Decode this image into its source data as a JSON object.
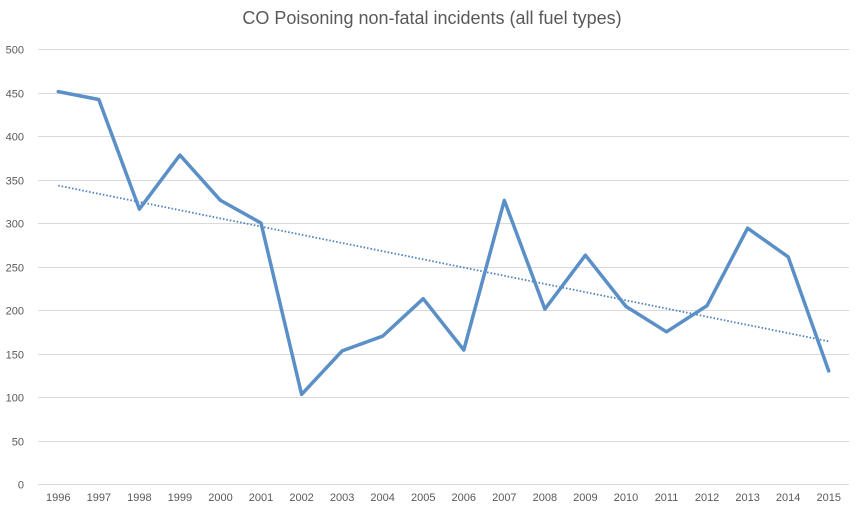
{
  "chart_data": {
    "type": "line",
    "title": "CO Poisoning non-fatal incidents (all fuel types)",
    "xlabel": "",
    "ylabel": "",
    "categories": [
      "1996",
      "1997",
      "1998",
      "1999",
      "2000",
      "2001",
      "2002",
      "2003",
      "2004",
      "2005",
      "2006",
      "2007",
      "2008",
      "2009",
      "2010",
      "2011",
      "2012",
      "2013",
      "2014",
      "2015"
    ],
    "series": [
      {
        "values": [
          451,
          442,
          316,
          378,
          326,
          300,
          103,
          153,
          170,
          213,
          154,
          326,
          201,
          263,
          204,
          175,
          205,
          294,
          261,
          130
        ]
      }
    ],
    "trendline": {
      "type": "linear",
      "start": 343,
      "end": 164
    },
    "ylim": [
      0,
      500
    ],
    "yticks": [
      0,
      50,
      100,
      150,
      200,
      250,
      300,
      350,
      400,
      450,
      500
    ],
    "grid": true,
    "legend": "none",
    "colors": {
      "line": "#5b8fc7",
      "trend": "#4a7fbc",
      "grid": "#d9d9d9",
      "text": "#595959"
    }
  }
}
